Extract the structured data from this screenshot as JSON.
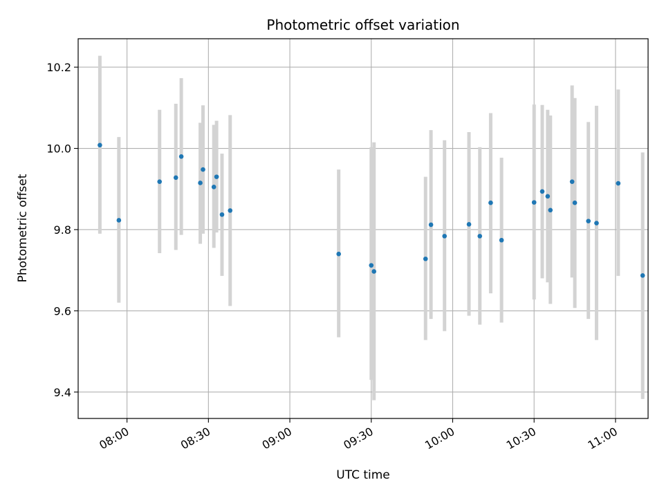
{
  "chart_data": {
    "type": "scatter",
    "title": "Photometric offset variation",
    "xlabel": "UTC time",
    "ylabel": "Photometric offset",
    "x_tick_labels": [
      "08:00",
      "08:30",
      "09:00",
      "09:30",
      "10:00",
      "10:30",
      "11:00"
    ],
    "x_tick_minutes": [
      480,
      510,
      540,
      570,
      600,
      630,
      660
    ],
    "xlim_minutes": [
      462,
      672
    ],
    "y_ticks": [
      9.4,
      9.6,
      9.8,
      10.0,
      10.2
    ],
    "y_tick_labels": [
      "9.4",
      "9.6",
      "9.8",
      "10.0",
      "10.2"
    ],
    "ylim": [
      9.335,
      10.27
    ],
    "grid": true,
    "point_color": "#1f77b4",
    "errorbar_color": "#d3d3d3",
    "points": [
      {
        "t": "07:50",
        "y": 10.008,
        "lo": 9.79,
        "hi": 10.228
      },
      {
        "t": "07:57",
        "y": 9.823,
        "lo": 9.62,
        "hi": 10.028
      },
      {
        "t": "08:12",
        "y": 9.918,
        "lo": 9.742,
        "hi": 10.095
      },
      {
        "t": "08:18",
        "y": 9.928,
        "lo": 9.75,
        "hi": 10.11
      },
      {
        "t": "08:20",
        "y": 9.98,
        "lo": 9.787,
        "hi": 10.173
      },
      {
        "t": "08:27",
        "y": 9.915,
        "lo": 9.765,
        "hi": 10.063
      },
      {
        "t": "08:28",
        "y": 9.948,
        "lo": 9.79,
        "hi": 10.106
      },
      {
        "t": "08:32",
        "y": 9.905,
        "lo": 9.755,
        "hi": 10.058
      },
      {
        "t": "08:33",
        "y": 9.93,
        "lo": 9.793,
        "hi": 10.068
      },
      {
        "t": "08:35",
        "y": 9.837,
        "lo": 9.686,
        "hi": 9.987
      },
      {
        "t": "08:38",
        "y": 9.847,
        "lo": 9.612,
        "hi": 10.082
      },
      {
        "t": "09:18",
        "y": 9.74,
        "lo": 9.535,
        "hi": 9.948
      },
      {
        "t": "09:30",
        "y": 9.712,
        "lo": 9.43,
        "hi": 10.003
      },
      {
        "t": "09:31",
        "y": 9.697,
        "lo": 9.38,
        "hi": 10.015
      },
      {
        "t": "09:50",
        "y": 9.728,
        "lo": 9.528,
        "hi": 9.93
      },
      {
        "t": "09:52",
        "y": 9.812,
        "lo": 9.58,
        "hi": 10.045
      },
      {
        "t": "09:57",
        "y": 9.784,
        "lo": 9.55,
        "hi": 10.02
      },
      {
        "t": "10:06",
        "y": 9.813,
        "lo": 9.588,
        "hi": 10.04
      },
      {
        "t": "10:10",
        "y": 9.784,
        "lo": 9.566,
        "hi": 10.003
      },
      {
        "t": "10:14",
        "y": 9.866,
        "lo": 9.643,
        "hi": 10.087
      },
      {
        "t": "10:18",
        "y": 9.774,
        "lo": 9.571,
        "hi": 9.977
      },
      {
        "t": "10:30",
        "y": 9.867,
        "lo": 9.628,
        "hi": 10.108
      },
      {
        "t": "10:33",
        "y": 9.894,
        "lo": 9.68,
        "hi": 10.107
      },
      {
        "t": "10:35",
        "y": 9.882,
        "lo": 9.67,
        "hi": 10.095
      },
      {
        "t": "10:36",
        "y": 9.848,
        "lo": 9.617,
        "hi": 10.081
      },
      {
        "t": "10:44",
        "y": 9.918,
        "lo": 9.682,
        "hi": 10.155
      },
      {
        "t": "10:45",
        "y": 9.866,
        "lo": 9.607,
        "hi": 10.124
      },
      {
        "t": "10:50",
        "y": 9.821,
        "lo": 9.58,
        "hi": 10.065
      },
      {
        "t": "10:53",
        "y": 9.816,
        "lo": 9.528,
        "hi": 10.105
      },
      {
        "t": "11:01",
        "y": 9.914,
        "lo": 9.686,
        "hi": 10.145
      },
      {
        "t": "11:10",
        "y": 9.687,
        "lo": 9.383,
        "hi": 9.99
      }
    ]
  }
}
